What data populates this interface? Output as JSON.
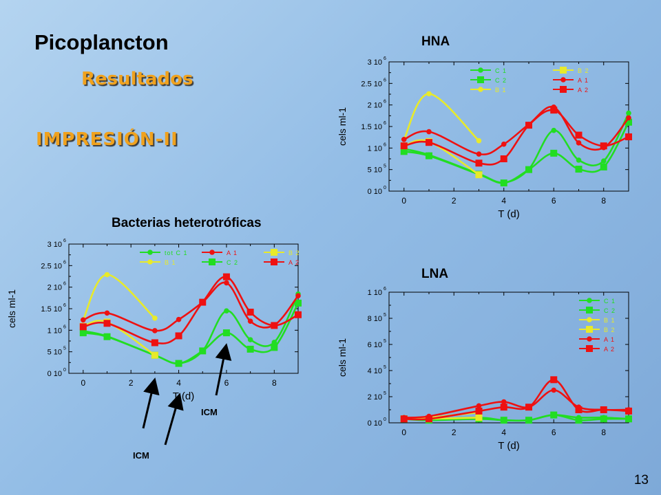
{
  "slide": {
    "title": "Picoplancton",
    "subtitle": "Resultados",
    "heading": "IMPRESIÓN-II",
    "page_number": "13",
    "annotations": [
      "ICM",
      "ICM"
    ]
  },
  "colors": {
    "C1": "#22dd22",
    "C2": "#22dd22",
    "B1": "#e8ea2a",
    "B2": "#e8ea2a",
    "A1": "#ee1111",
    "A2": "#ee1111"
  },
  "chart_data": [
    {
      "id": "hna",
      "type": "line",
      "title": "HNA",
      "xlabel": "T (d)",
      "ylabel": "cels ml-1",
      "xlim": [
        -0.6,
        9.0
      ],
      "ylim": [
        0,
        3000000
      ],
      "xticks": [
        0,
        2,
        4,
        6,
        8
      ],
      "yticks": [
        0,
        500000,
        1000000,
        1500000,
        2000000,
        2500000,
        3000000
      ],
      "ytick_labels": [
        {
          "m": "0",
          "e": "0"
        },
        {
          "m": "5",
          "e": "5"
        },
        {
          "m": "1",
          "e": "6"
        },
        {
          "m": "1.5",
          "e": "6"
        },
        {
          "m": "2",
          "e": "6"
        },
        {
          "m": "2.5",
          "e": "6"
        },
        {
          "m": "3",
          "e": "6"
        }
      ],
      "series": [
        {
          "name": "C1",
          "marker": "circle",
          "x": [
            0,
            1,
            3,
            4,
            5,
            6,
            7,
            8,
            9
          ],
          "y": [
            980000,
            840000,
            400000,
            200000,
            510000,
            1410000,
            720000,
            700000,
            1810000
          ]
        },
        {
          "name": "C2",
          "marker": "square",
          "x": [
            0,
            1,
            3,
            4,
            5,
            6,
            7,
            8,
            9
          ],
          "y": [
            920000,
            820000,
            390000,
            190000,
            500000,
            880000,
            510000,
            560000,
            1600000
          ]
        },
        {
          "name": "B1",
          "marker": "circle",
          "x": [
            0,
            1,
            3
          ],
          "y": [
            1200000,
            2260000,
            1170000
          ]
        },
        {
          "name": "B2",
          "marker": "square",
          "x": [
            0,
            1,
            3
          ],
          "y": [
            1050000,
            1150000,
            380000
          ]
        },
        {
          "name": "A1",
          "marker": "circle",
          "x": [
            0,
            1,
            3,
            4,
            5,
            6,
            7,
            8,
            9
          ],
          "y": [
            1200000,
            1380000,
            860000,
            1090000,
            1550000,
            1950000,
            1120000,
            1010000,
            1700000
          ]
        },
        {
          "name": "A2",
          "marker": "square",
          "x": [
            0,
            1,
            3,
            4,
            5,
            6,
            7,
            8,
            9
          ],
          "y": [
            1050000,
            1130000,
            650000,
            750000,
            1530000,
            1880000,
            1300000,
            1050000,
            1260000
          ]
        }
      ],
      "legend": {
        "placement": "top-right",
        "order": [
          "C1",
          "B2",
          "C2",
          "A1",
          "B1",
          "A2"
        ],
        "labels": {
          "C1": "C 1",
          "B2": "B 2",
          "C2": "C 2",
          "A1": "A 1",
          "B1": "B 1",
          "A2": "A 2"
        }
      }
    },
    {
      "id": "bact",
      "type": "line",
      "title": "Bacterias heterotróficas",
      "xlabel": "T (d)",
      "ylabel": "cels ml-1",
      "xlim": [
        -0.6,
        9.0
      ],
      "ylim": [
        0,
        3000000
      ],
      "xticks": [
        0,
        2,
        4,
        6,
        8
      ],
      "yticks": [
        0,
        500000,
        1000000,
        1500000,
        2000000,
        2500000,
        3000000
      ],
      "ytick_labels": [
        {
          "m": "0",
          "e": "0"
        },
        {
          "m": "5",
          "e": "5"
        },
        {
          "m": "1",
          "e": "6"
        },
        {
          "m": "1.5",
          "e": "6"
        },
        {
          "m": "2",
          "e": "6"
        },
        {
          "m": "2.5",
          "e": "6"
        },
        {
          "m": "3",
          "e": "6"
        }
      ],
      "series": [
        {
          "name": "C1",
          "marker": "circle",
          "x": [
            0,
            1,
            3,
            4,
            5,
            6,
            7,
            8,
            9
          ],
          "y": [
            980000,
            860000,
            420000,
            230000,
            520000,
            1450000,
            780000,
            720000,
            1840000
          ]
        },
        {
          "name": "C2",
          "marker": "square",
          "x": [
            0,
            1,
            3,
            4,
            5,
            6,
            7,
            8,
            9
          ],
          "y": [
            940000,
            850000,
            420000,
            230000,
            520000,
            940000,
            560000,
            600000,
            1630000
          ]
        },
        {
          "name": "B1",
          "marker": "circle",
          "x": [
            0,
            1,
            3
          ],
          "y": [
            1240000,
            2290000,
            1280000
          ]
        },
        {
          "name": "B2",
          "marker": "square",
          "x": [
            0,
            1,
            3
          ],
          "y": [
            1090000,
            1190000,
            420000
          ]
        },
        {
          "name": "A1",
          "marker": "circle",
          "x": [
            0,
            1,
            3,
            4,
            5,
            6,
            7,
            8,
            9
          ],
          "y": [
            1240000,
            1400000,
            990000,
            1250000,
            1650000,
            2100000,
            1210000,
            1120000,
            1800000
          ]
        },
        {
          "name": "A2",
          "marker": "square",
          "x": [
            0,
            1,
            3,
            4,
            5,
            6,
            7,
            8,
            9
          ],
          "y": [
            1080000,
            1160000,
            710000,
            870000,
            1650000,
            2240000,
            1420000,
            1110000,
            1360000
          ]
        }
      ],
      "legend": {
        "placement": "top-right",
        "order": [
          "C1",
          "B1",
          "A1",
          "C2",
          "B2",
          "A2"
        ],
        "labels": {
          "C1": "tot C 1",
          "B1": "B 1",
          "A1": "A 1",
          "C2": "C 2",
          "B2": "B 2",
          "A2": "A 2"
        }
      }
    },
    {
      "id": "lna",
      "type": "line",
      "title": "LNA",
      "xlabel": "T (d)",
      "ylabel": "cels ml-1",
      "xlim": [
        -0.6,
        9.0
      ],
      "ylim": [
        0,
        1000000
      ],
      "xticks": [
        0,
        2,
        4,
        6,
        8
      ],
      "yticks": [
        0,
        200000,
        400000,
        600000,
        800000,
        1000000
      ],
      "ytick_labels": [
        {
          "m": "0",
          "e": "0"
        },
        {
          "m": "2",
          "e": "5"
        },
        {
          "m": "4",
          "e": "5"
        },
        {
          "m": "6",
          "e": "5"
        },
        {
          "m": "8",
          "e": "5"
        },
        {
          "m": "1",
          "e": "6"
        }
      ],
      "series": [
        {
          "name": "C1",
          "marker": "circle",
          "x": [
            0,
            1,
            3,
            4,
            5,
            6,
            7,
            8,
            9
          ],
          "y": [
            40000,
            30000,
            40000,
            20000,
            20000,
            60000,
            40000,
            40000,
            30000
          ]
        },
        {
          "name": "C2",
          "marker": "square",
          "x": [
            0,
            1,
            3,
            4,
            5,
            6,
            7,
            8,
            9
          ],
          "y": [
            30000,
            20000,
            30000,
            20000,
            20000,
            60000,
            20000,
            30000,
            30000
          ]
        },
        {
          "name": "B1",
          "marker": "circle",
          "x": [
            0,
            1,
            3
          ],
          "y": [
            40000,
            40000,
            80000
          ]
        },
        {
          "name": "B2",
          "marker": "square",
          "x": [
            0,
            1,
            3
          ],
          "y": [
            30000,
            30000,
            40000
          ]
        },
        {
          "name": "A1",
          "marker": "circle",
          "x": [
            0,
            1,
            3,
            4,
            5,
            6,
            7,
            8,
            9
          ],
          "y": [
            40000,
            50000,
            130000,
            160000,
            120000,
            250000,
            120000,
            100000,
            100000
          ]
        },
        {
          "name": "A2",
          "marker": "square",
          "x": [
            0,
            1,
            3,
            4,
            5,
            6,
            7,
            8,
            9
          ],
          "y": [
            30000,
            30000,
            90000,
            120000,
            120000,
            330000,
            100000,
            100000,
            90000
          ]
        }
      ],
      "legend": {
        "placement": "top-right",
        "order": [
          "C1",
          "C2",
          "B1",
          "B2",
          "A1",
          "A2"
        ],
        "labels": {
          "C1": "C 1",
          "C2": "C 2",
          "B1": "B 1",
          "B2": "B 2",
          "A1": "A 1",
          "A2": "A 2"
        }
      }
    }
  ]
}
